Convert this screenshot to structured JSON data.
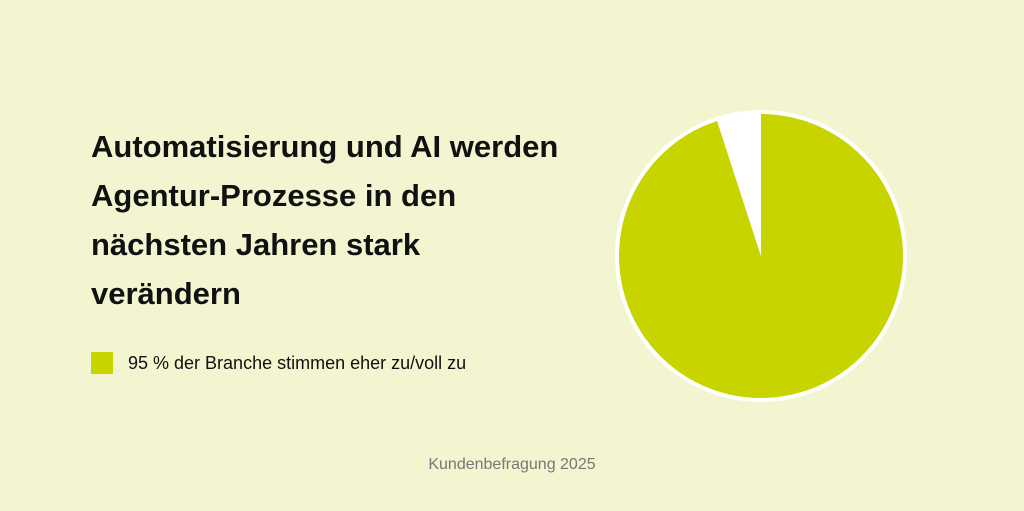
{
  "chart_data": {
    "type": "pie",
    "title": "Automatisierung und AI werden Agentur-Prozesse in den nächsten Jahren stark verändern",
    "categories": [
      "95 % der Branche stimmen eher zu/voll zu",
      null
    ],
    "values": [
      95,
      5
    ],
    "colors": [
      "#c8d400",
      "#ffffff"
    ],
    "source": "Kundenbefragung 2025"
  }
}
